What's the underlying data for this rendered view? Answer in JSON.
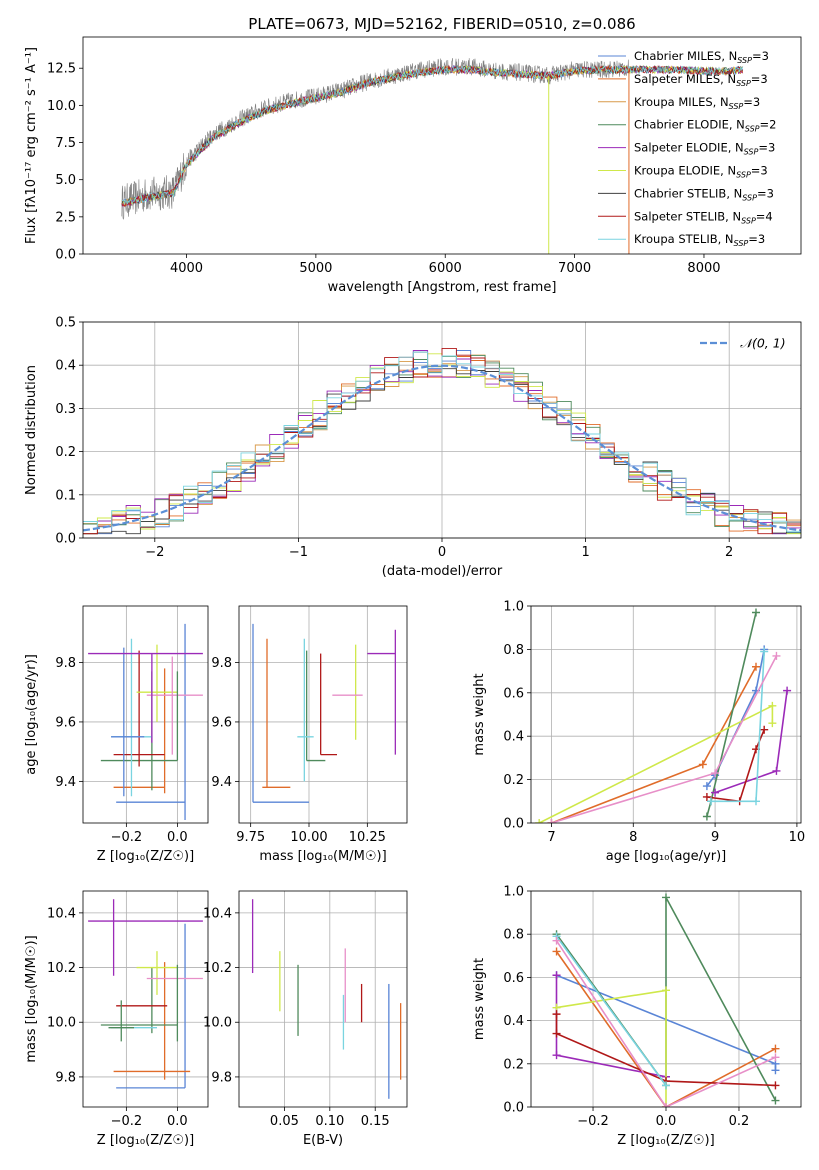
{
  "chart_data": [
    {
      "type": "line",
      "title": "PLATE=0673, MJD=52162, FIBERID=0510, z=0.086",
      "xlabel": "wavelength [Angstrom, rest frame]",
      "ylabel": "Flux [fλ10⁻¹⁷ erg cm⁻² s⁻¹ A⁻¹]",
      "xlim": [
        3200,
        8750
      ],
      "ylim": [
        0,
        14.6
      ],
      "xticks": [
        4000,
        5000,
        6000,
        7000,
        8000
      ],
      "yticks": [
        0.0,
        2.5,
        5.0,
        7.5,
        10.0,
        12.5
      ],
      "grid": false,
      "legend": "upper right",
      "data_series": {
        "name": "data",
        "color": "#808080"
      },
      "data_envelope": {
        "x": [
          3500,
          3700,
          3900,
          4000,
          4200,
          4400,
          4600,
          4800,
          5000,
          5200,
          5400,
          5600,
          5800,
          6000,
          6200,
          6400,
          6600,
          6800,
          7000,
          7200,
          7400
        ],
        "y": [
          3.5,
          4.0,
          4.2,
          6.2,
          8.0,
          9.0,
          9.8,
          10.3,
          10.6,
          11.0,
          11.6,
          12.0,
          12.4,
          12.6,
          12.6,
          12.3,
          12.2,
          12.0,
          12.4,
          12.4,
          12.5
        ]
      },
      "model_x": [
        3500,
        3700,
        3900,
        4000,
        4200,
        4400,
        4600,
        4800,
        5000,
        5200,
        5400,
        5600,
        5800,
        6000,
        6200,
        6400,
        6600,
        6800,
        7000,
        7200,
        7400,
        7600,
        7800,
        8000,
        8200,
        8300
      ],
      "model_y": [
        3.4,
        3.8,
        4.1,
        6.0,
        7.8,
        8.8,
        9.6,
        10.1,
        10.5,
        10.9,
        11.5,
        11.9,
        12.2,
        12.4,
        12.4,
        12.2,
        12.1,
        12.0,
        12.3,
        12.4,
        12.4,
        12.4,
        12.4,
        12.3,
        12.3,
        12.4
      ],
      "series": [
        {
          "name": "Chabrier MILES, N",
          "sub": "SSP",
          "suffix": "=3",
          "color": "#5a85d6"
        },
        {
          "name": "Salpeter MILES, N",
          "sub": "SSP",
          "suffix": "=3",
          "color": "#e06c2a"
        },
        {
          "name": "Kroupa MILES, N",
          "sub": "SSP",
          "suffix": "=3",
          "color": "#d89a4a"
        },
        {
          "name": "Chabrier ELODIE, N",
          "sub": "SSP",
          "suffix": "=2",
          "color": "#4f8a5c"
        },
        {
          "name": "Salpeter ELODIE, N",
          "sub": "SSP",
          "suffix": "=3",
          "color": "#9b2ab8"
        },
        {
          "name": "Kroupa ELODIE, N",
          "sub": "SSP",
          "suffix": "=3",
          "color": "#cfe84a"
        },
        {
          "name": "Chabrier STELIB, N",
          "sub": "SSP",
          "suffix": "=3",
          "color": "#404040"
        },
        {
          "name": "Salpeter STELIB, N",
          "sub": "SSP",
          "suffix": "=4",
          "color": "#b01818"
        },
        {
          "name": "Kroupa STELIB, N",
          "sub": "SSP",
          "suffix": "=3",
          "color": "#7ad4e0"
        }
      ]
    },
    {
      "type": "line",
      "xlabel": "(data-model)/error",
      "ylabel": "Normed distribution",
      "xlim": [
        -2.5,
        2.5
      ],
      "ylim": [
        0,
        0.5
      ],
      "xticks": [
        -2,
        -1,
        0,
        1,
        2
      ],
      "yticks": [
        0.0,
        0.1,
        0.2,
        0.3,
        0.4,
        0.5
      ],
      "grid": true,
      "legend": "upper right",
      "gaussian": {
        "name": "𝒩(0, 1)",
        "color": "#5b8fd6",
        "mean": 0,
        "sigma": 1
      },
      "histogram_bin_width": 0.1
    },
    {
      "type": "scatter",
      "xlabel": "Z [log₁₀(Z/Z☉)]",
      "ylabel": "age  [log₁₀(age/yr)]",
      "xlim": [
        -0.37,
        0.12
      ],
      "ylim": [
        9.26,
        9.99
      ],
      "xticks": [
        -0.2,
        0.0
      ],
      "yticks": [
        9.4,
        9.6,
        9.8
      ],
      "grid": true,
      "points": [
        {
          "color": "#5a85d6",
          "x": 0.03,
          "y": 9.33,
          "xerr": [
            0.27,
            0.0
          ],
          "yerr": [
            0.06,
            0.6
          ]
        },
        {
          "color": "#e06c2a",
          "x": -0.05,
          "y": 9.38,
          "xerr": [
            0.2,
            0.0
          ],
          "yerr": [
            0.02,
            0.4
          ]
        },
        {
          "color": "#4f8a5c",
          "x": -0.1,
          "y": 9.47,
          "xerr": [
            0.2,
            0.1
          ],
          "yerr": [
            0.1,
            0.3
          ]
        },
        {
          "color": "#b01818",
          "x": -0.15,
          "y": 9.49,
          "xerr": [
            0.1,
            0.1
          ],
          "yerr": [
            0.04,
            0.35
          ]
        },
        {
          "color": "#7ad4e0",
          "x": -0.18,
          "y": 9.55,
          "xerr": [
            0.08,
            0.08
          ],
          "yerr": [
            0.2,
            0.33
          ]
        },
        {
          "color": "#5a85d6",
          "x": -0.21,
          "y": 9.55,
          "xerr": [
            0.05,
            0.08
          ],
          "yerr": [
            0.2,
            0.3
          ]
        },
        {
          "color": "#cfe84a",
          "x": -0.08,
          "y": 9.7,
          "xerr": [
            0.08,
            0.08
          ],
          "yerr": [
            0.1,
            0.16
          ]
        },
        {
          "color": "#e78fc8",
          "x": -0.02,
          "y": 9.69,
          "xerr": [
            0.1,
            0.12
          ],
          "yerr": [
            0.2,
            0.13
          ]
        },
        {
          "color": "#9b2ab8",
          "x": -0.1,
          "y": 9.83,
          "xerr": [
            0.25,
            0.2
          ],
          "yerr": [
            0.3,
            0.0
          ]
        },
        {
          "color": "#4f8a5c",
          "x": 0.0,
          "y": 9.47,
          "xerr": [
            0.0,
            0.0
          ],
          "yerr": [
            0.0,
            0.3
          ]
        }
      ]
    },
    {
      "type": "scatter",
      "xlabel": "mass [log₁₀(M/M☉)]",
      "ylabel": "",
      "xlim": [
        9.7,
        10.42
      ],
      "ylim": [
        9.26,
        9.99
      ],
      "xticks": [
        9.75,
        10.0,
        10.25
      ],
      "yticks": [
        9.4,
        9.6,
        9.8
      ],
      "grid": true,
      "points": [
        {
          "color": "#5a85d6",
          "x": 9.76,
          "y": 9.33,
          "xerr": [
            0.0,
            0.24
          ],
          "yerr": [
            0.0,
            0.6
          ]
        },
        {
          "color": "#e06c2a",
          "x": 9.82,
          "y": 9.38,
          "xerr": [
            0.02,
            0.1
          ],
          "yerr": [
            0.0,
            0.5
          ]
        },
        {
          "color": "#4f8a5c",
          "x": 9.99,
          "y": 9.47,
          "xerr": [
            0.0,
            0.08
          ],
          "yerr": [
            0.0,
            0.37
          ]
        },
        {
          "color": "#b01818",
          "x": 10.05,
          "y": 9.49,
          "xerr": [
            0.0,
            0.07
          ],
          "yerr": [
            0.0,
            0.34
          ]
        },
        {
          "color": "#7ad4e0",
          "x": 9.98,
          "y": 9.55,
          "xerr": [
            0.03,
            0.04
          ],
          "yerr": [
            0.15,
            0.33
          ]
        },
        {
          "color": "#cfe84a",
          "x": 10.2,
          "y": 9.7,
          "xerr": [
            0.0,
            0.0
          ],
          "yerr": [
            0.16,
            0.16
          ]
        },
        {
          "color": "#e78fc8",
          "x": 10.17,
          "y": 9.69,
          "xerr": [
            0.07,
            0.06
          ],
          "yerr": [
            0.0,
            0.0
          ]
        },
        {
          "color": "#9b2ab8",
          "x": 10.37,
          "y": 9.83,
          "xerr": [
            0.12,
            0.0
          ],
          "yerr": [
            0.34,
            0.08
          ]
        }
      ]
    },
    {
      "type": "line",
      "xlabel": "age  [log₁₀(age/yr)]",
      "ylabel": "mass weight",
      "xlim": [
        6.75,
        10.05
      ],
      "ylim": [
        0,
        1.0
      ],
      "xticks": [
        7,
        8,
        9,
        10
      ],
      "yticks": [
        0.0,
        0.2,
        0.4,
        0.6,
        0.8,
        1.0
      ],
      "grid": true,
      "series": [
        {
          "color": "#5a85d6",
          "x": [
            8.9,
            9.0,
            9.5,
            9.6
          ],
          "y": [
            0.17,
            0.22,
            0.61,
            0.8
          ]
        },
        {
          "color": "#e06c2a",
          "x": [
            7.0,
            8.85,
            9.5
          ],
          "y": [
            0.0,
            0.27,
            0.72
          ]
        },
        {
          "color": "#4f8a5c",
          "x": [
            8.9,
            8.95,
            9.5
          ],
          "y": [
            0.03,
            0.1,
            0.97
          ]
        },
        {
          "color": "#9b2ab8",
          "x": [
            9.0,
            9.75,
            9.88
          ],
          "y": [
            0.14,
            0.24,
            0.61
          ]
        },
        {
          "color": "#cfe84a",
          "x": [
            6.85,
            9.7,
            9.7
          ],
          "y": [
            0.0,
            0.54,
            0.46
          ]
        },
        {
          "color": "#b01818",
          "x": [
            8.9,
            9.3,
            9.5,
            9.6
          ],
          "y": [
            0.12,
            0.1,
            0.34,
            0.43
          ]
        },
        {
          "color": "#7ad4e0",
          "x": [
            8.95,
            9.5,
            9.6
          ],
          "y": [
            0.1,
            0.1,
            0.79
          ]
        },
        {
          "color": "#e78fc8",
          "x": [
            7.0,
            9.0,
            9.75
          ],
          "y": [
            0.0,
            0.23,
            0.77
          ]
        }
      ]
    },
    {
      "type": "scatter",
      "xlabel": "Z [log₁₀(Z/Z☉)]",
      "ylabel": "mass [log₁₀(M/M☉)]",
      "xlim": [
        -0.37,
        0.12
      ],
      "ylim": [
        9.69,
        10.48
      ],
      "xticks": [
        -0.2,
        0.0
      ],
      "yticks": [
        9.8,
        10.0,
        10.2,
        10.4
      ],
      "grid": true,
      "points": [
        {
          "color": "#5a85d6",
          "x": 0.03,
          "y": 9.76,
          "xerr": [
            0.27,
            0.0
          ],
          "yerr": [
            0.0,
            0.6
          ]
        },
        {
          "color": "#e06c2a",
          "x": -0.05,
          "y": 9.82,
          "xerr": [
            0.2,
            0.1
          ],
          "yerr": [
            0.03,
            0.4
          ]
        },
        {
          "color": "#4f8a5c",
          "x": -0.1,
          "y": 9.99,
          "xerr": [
            0.2,
            0.1
          ],
          "yerr": [
            0.03,
            0.21
          ]
        },
        {
          "color": "#b01818",
          "x": -0.14,
          "y": 10.06,
          "xerr": [
            0.1,
            0.1
          ],
          "yerr": [
            0.0,
            0.0
          ]
        },
        {
          "color": "#7ad4e0",
          "x": -0.18,
          "y": 9.98,
          "xerr": [
            0.08,
            0.1
          ],
          "yerr": [
            0.0,
            0.0
          ]
        },
        {
          "color": "#cfe84a",
          "x": -0.08,
          "y": 10.2,
          "xerr": [
            0.08,
            0.08
          ],
          "yerr": [
            0.1,
            0.06
          ]
        },
        {
          "color": "#e78fc8",
          "x": -0.02,
          "y": 10.16,
          "xerr": [
            0.1,
            0.12
          ],
          "yerr": [
            0.0,
            0.0
          ]
        },
        {
          "color": "#9b2ab8",
          "x": -0.1,
          "y": 10.37,
          "xerr": [
            0.25,
            0.2
          ],
          "yerr": [
            0.0,
            0.0
          ]
        },
        {
          "color": "#9b2ab8",
          "x": -0.25,
          "y": 10.31,
          "xerr": [
            0.0,
            0.0
          ],
          "yerr": [
            0.14,
            0.14
          ]
        },
        {
          "color": "#4f8a5c",
          "x": -0.22,
          "y": 9.98,
          "xerr": [
            0.05,
            0.05
          ],
          "yerr": [
            0.05,
            0.1
          ]
        },
        {
          "color": "#4f8a5c",
          "x": 0.0,
          "y": 10.03,
          "xerr": [
            0.0,
            0.0
          ],
          "yerr": [
            0.1,
            0.18
          ]
        }
      ]
    },
    {
      "type": "scatter",
      "xlabel": "E(B-V)",
      "ylabel": "",
      "xlim": [
        0.0,
        0.185
      ],
      "ylim": [
        9.69,
        10.48
      ],
      "xticks": [
        0.05,
        0.1,
        0.15
      ],
      "yticks": [
        9.8,
        10.0,
        10.2,
        10.4
      ],
      "grid": true,
      "points": [
        {
          "color": "#9b2ab8",
          "x": 0.015,
          "y": 10.31,
          "xerr": [
            0.0,
            0.0
          ],
          "yerr": [
            0.13,
            0.14
          ]
        },
        {
          "color": "#cfe84a",
          "x": 0.045,
          "y": 10.15,
          "xerr": [
            0.0,
            0.0
          ],
          "yerr": [
            0.11,
            0.11
          ]
        },
        {
          "color": "#4f8a5c",
          "x": 0.065,
          "y": 10.08,
          "xerr": [
            0.0,
            0.0
          ],
          "yerr": [
            0.13,
            0.13
          ]
        },
        {
          "color": "#7ad4e0",
          "x": 0.115,
          "y": 9.97,
          "xerr": [
            0.0,
            0.0
          ],
          "yerr": [
            0.07,
            0.13
          ]
        },
        {
          "color": "#e78fc8",
          "x": 0.117,
          "y": 10.1,
          "xerr": [
            0.0,
            0.0
          ],
          "yerr": [
            0.1,
            0.17
          ]
        },
        {
          "color": "#b01818",
          "x": 0.135,
          "y": 10.07,
          "xerr": [
            0.0,
            0.0
          ],
          "yerr": [
            0.07,
            0.07
          ]
        },
        {
          "color": "#5a85d6",
          "x": 0.165,
          "y": 9.92,
          "xerr": [
            0.0,
            0.0
          ],
          "yerr": [
            0.2,
            0.22
          ]
        },
        {
          "color": "#e06c2a",
          "x": 0.178,
          "y": 9.92,
          "xerr": [
            0.0,
            0.0
          ],
          "yerr": [
            0.13,
            0.15
          ]
        }
      ]
    },
    {
      "type": "line",
      "xlabel": "Z [log₁₀(Z/Z☉)]",
      "ylabel": "mass weight",
      "xlim": [
        -0.37,
        0.37
      ],
      "ylim": [
        0,
        1.0
      ],
      "xticks": [
        -0.2,
        0.0,
        0.2
      ],
      "yticks": [
        0.0,
        0.2,
        0.4,
        0.6,
        0.8,
        1.0
      ],
      "grid": true,
      "series": [
        {
          "color": "#5a85d6",
          "x": [
            -0.3,
            0.3,
            0.3
          ],
          "y": [
            0.61,
            0.2,
            0.17
          ]
        },
        {
          "color": "#e06c2a",
          "x": [
            -0.3,
            0.0,
            0.3
          ],
          "y": [
            0.72,
            0.0,
            0.27
          ]
        },
        {
          "color": "#4f8a5c",
          "x": [
            -0.3,
            0.0,
            0.0,
            0.3
          ],
          "y": [
            0.8,
            0.1,
            0.97,
            0.03
          ]
        },
        {
          "color": "#9b2ab8",
          "x": [
            -0.3,
            -0.3,
            0.0
          ],
          "y": [
            0.61,
            0.24,
            0.14
          ]
        },
        {
          "color": "#cfe84a",
          "x": [
            -0.3,
            0.0,
            0.0
          ],
          "y": [
            0.46,
            0.54,
            0.0
          ]
        },
        {
          "color": "#b01818",
          "x": [
            -0.3,
            -0.3,
            0.0,
            0.3
          ],
          "y": [
            0.43,
            0.34,
            0.12,
            0.1
          ]
        },
        {
          "color": "#7ad4e0",
          "x": [
            -0.3,
            0.0
          ],
          "y": [
            0.79,
            0.1
          ]
        },
        {
          "color": "#e78fc8",
          "x": [
            -0.3,
            0.0,
            0.3
          ],
          "y": [
            0.77,
            0.0,
            0.23
          ]
        }
      ]
    }
  ]
}
